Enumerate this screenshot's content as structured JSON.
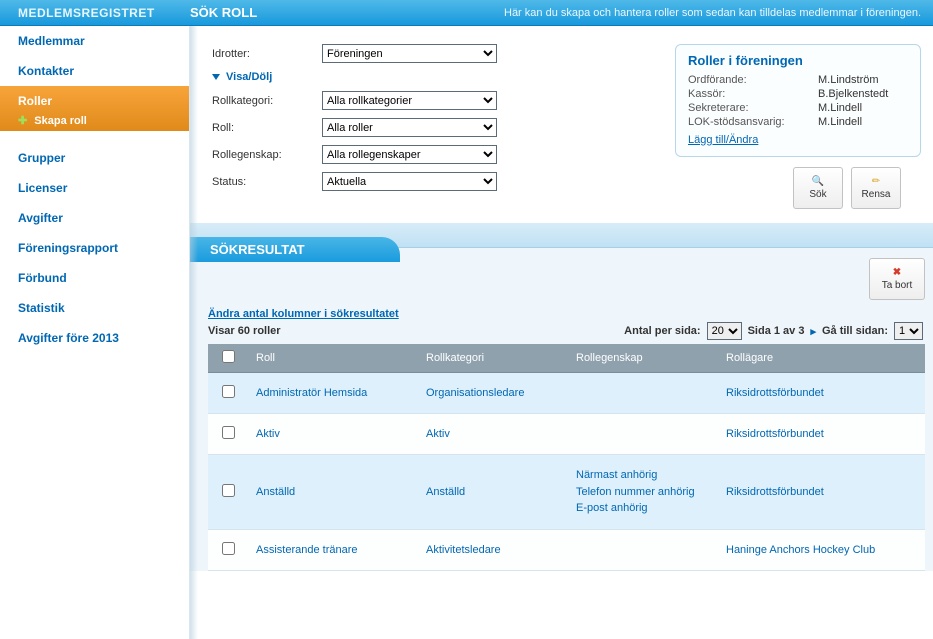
{
  "topbar": {
    "section": "MEDLEMSREGISTRET",
    "title": "SÖK ROLL",
    "description": "Här kan du skapa och hantera roller som sedan kan tilldelas medlemmar i föreningen."
  },
  "sidebar": {
    "items": [
      {
        "label": "Medlemmar",
        "active": false
      },
      {
        "label": "Kontakter",
        "active": false
      },
      {
        "label": "Roller",
        "active": true,
        "sub": "Skapa roll"
      },
      {
        "label": "Grupper",
        "active": false
      },
      {
        "label": "Licenser",
        "active": false
      },
      {
        "label": "Avgifter",
        "active": false
      },
      {
        "label": "Föreningsrapport",
        "active": false
      },
      {
        "label": "Förbund",
        "active": false
      },
      {
        "label": "Statistik",
        "active": false
      },
      {
        "label": "Avgifter före 2013",
        "active": false
      }
    ]
  },
  "filters": {
    "idrotter_label": "Idrotter:",
    "idrotter_value": "Föreningen",
    "toggle_label": "Visa/Dölj",
    "rollkategori_label": "Rollkategori:",
    "rollkategori_value": "Alla rollkategorier",
    "roll_label": "Roll:",
    "roll_value": "Alla roller",
    "rollegenskap_label": "Rollegenskap:",
    "rollegenskap_value": "Alla rollegenskaper",
    "status_label": "Status:",
    "status_value": "Aktuella"
  },
  "rolesbox": {
    "title": "Roller i föreningen",
    "rows": [
      {
        "k": "Ordförande:",
        "v": "M.Lindström"
      },
      {
        "k": "Kassör:",
        "v": "B.Bjelkenstedt"
      },
      {
        "k": "Sekreterare:",
        "v": "M.Lindell"
      },
      {
        "k": "LOK-stödsansvarig:",
        "v": "M.Lindell"
      }
    ],
    "edit_link": "Lägg till/Ändra"
  },
  "buttons": {
    "search": "Sök",
    "clear": "Rensa",
    "remove": "Ta bort"
  },
  "results_header": "SÖKRESULTAT",
  "columns_link": "Ändra antal kolumner i sökresultatet",
  "count_text": "Visar 60 roller",
  "pager": {
    "per_label": "Antal per sida:",
    "per_value": "20",
    "page_text": "Sida 1 av 3",
    "goto_label": "Gå till sidan:",
    "goto_value": "1"
  },
  "columns": {
    "roll": "Roll",
    "kat": "Rollkategori",
    "eg": "Rollegenskap",
    "own": "Rollägare"
  },
  "rows": [
    {
      "roll": "Administratör Hemsida",
      "kat": "Organisationsledare",
      "eg": [],
      "own": "Riksidrottsförbundet",
      "odd": true
    },
    {
      "roll": "Aktiv",
      "kat": "Aktiv",
      "eg": [],
      "own": "Riksidrottsförbundet",
      "odd": false
    },
    {
      "roll": "Anställd",
      "kat": "Anställd",
      "eg": [
        "Närmast anhörig",
        "Telefon nummer anhörig",
        "E-post anhörig"
      ],
      "own": "Riksidrottsförbundet",
      "odd": true
    },
    {
      "roll": "Assisterande tränare",
      "kat": "Aktivitetsledare",
      "eg": [],
      "own": "Haninge Anchors Hockey Club",
      "odd": false
    }
  ]
}
